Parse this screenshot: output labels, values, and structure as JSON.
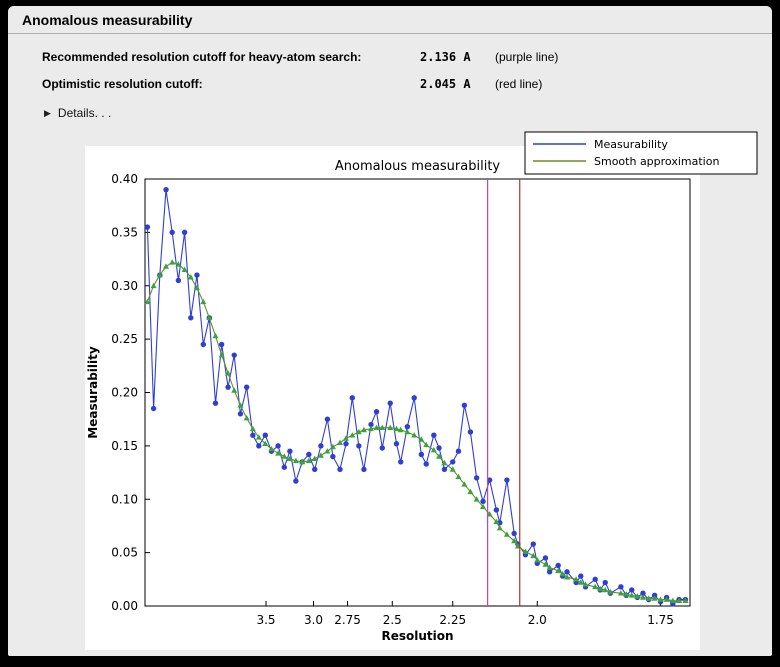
{
  "window": {
    "title": "Anomalous measurability",
    "info": {
      "rows": [
        {
          "label": "Recommended resolution cutoff for heavy-atom search:",
          "value": "2.136 A",
          "note": "(purple line)"
        },
        {
          "label": "Optimistic resolution cutoff:",
          "value": "2.045 A",
          "note": "(red line)"
        }
      ]
    },
    "details_label": "Details. . ."
  },
  "chart_data": {
    "type": "line",
    "title": "Anomalous measurability",
    "xlabel": "Resolution",
    "ylabel": "Measurability",
    "x_axis": {
      "transform": "1/d^2",
      "d_left": 12.4,
      "d_right": 1.703,
      "ticks": [
        3.5,
        3.0,
        2.75,
        2.5,
        2.25,
        2.0,
        1.75
      ],
      "tick_labels": [
        "3.5",
        "3.0",
        "2.75",
        "2.5",
        "2.25",
        "2.0",
        "1.75"
      ]
    },
    "y_axis": {
      "min": 0.0,
      "max": 0.4,
      "ticks": [
        0.0,
        0.05,
        0.1,
        0.15,
        0.2,
        0.25,
        0.3,
        0.35,
        0.4
      ],
      "tick_labels": [
        "0.00",
        "0.05",
        "0.10",
        "0.15",
        "0.20",
        "0.25",
        "0.30",
        "0.35",
        "0.40"
      ]
    },
    "x_resolution": [
      11.18,
      9.19,
      7.98,
      7.15,
      6.54,
      6.06,
      5.67,
      5.35,
      5.08,
      4.84,
      4.64,
      4.46,
      4.3,
      4.15,
      4.02,
      3.9,
      3.79,
      3.69,
      3.6,
      3.51,
      3.43,
      3.35,
      3.28,
      3.22,
      3.16,
      3.1,
      3.04,
      2.99,
      2.94,
      2.89,
      2.85,
      2.8,
      2.76,
      2.72,
      2.68,
      2.65,
      2.61,
      2.58,
      2.55,
      2.51,
      2.48,
      2.46,
      2.43,
      2.4,
      2.37,
      2.35,
      2.32,
      2.3,
      2.28,
      2.25,
      2.23,
      2.21,
      2.19,
      2.17,
      2.15,
      2.13,
      2.11,
      2.1,
      2.08,
      2.06,
      2.05,
      2.03,
      2.01,
      2.0,
      1.98,
      1.97,
      1.95,
      1.94,
      1.93,
      1.91,
      1.9,
      1.89,
      1.87,
      1.86,
      1.85,
      1.84,
      1.82,
      1.81,
      1.8,
      1.79,
      1.78,
      1.77,
      1.76,
      1.75,
      1.74,
      1.73,
      1.72,
      1.71
    ],
    "series": [
      {
        "name": "Measurability",
        "color": "#2f3fd3",
        "marker": "circle",
        "values": [
          0.355,
          0.185,
          0.31,
          0.39,
          0.35,
          0.305,
          0.35,
          0.27,
          0.31,
          0.245,
          0.27,
          0.19,
          0.245,
          0.205,
          0.235,
          0.18,
          0.205,
          0.16,
          0.15,
          0.16,
          0.145,
          0.15,
          0.13,
          0.145,
          0.117,
          0.135,
          0.142,
          0.128,
          0.15,
          0.175,
          0.14,
          0.128,
          0.152,
          0.195,
          0.15,
          0.128,
          0.17,
          0.182,
          0.148,
          0.19,
          0.152,
          0.135,
          0.168,
          0.195,
          0.142,
          0.133,
          0.16,
          0.148,
          0.128,
          0.135,
          0.145,
          0.188,
          0.163,
          0.12,
          0.098,
          0.118,
          0.09,
          0.078,
          0.118,
          0.068,
          0.058,
          0.048,
          0.058,
          0.04,
          0.045,
          0.032,
          0.038,
          0.028,
          0.032,
          0.022,
          0.028,
          0.018,
          0.025,
          0.015,
          0.022,
          0.012,
          0.018,
          0.01,
          0.015,
          0.008,
          0.012,
          0.006,
          0.01,
          0.004,
          0.008,
          0.002,
          0.006,
          0.006
        ]
      },
      {
        "name": "Smooth approximation",
        "color": "#3aa33a",
        "line_color": "#6b8e23",
        "marker": "triangle",
        "values": [
          0.285,
          0.3,
          0.31,
          0.318,
          0.322,
          0.32,
          0.315,
          0.308,
          0.298,
          0.285,
          0.27,
          0.253,
          0.235,
          0.218,
          0.202,
          0.188,
          0.176,
          0.166,
          0.158,
          0.152,
          0.147,
          0.143,
          0.14,
          0.138,
          0.136,
          0.135,
          0.136,
          0.138,
          0.141,
          0.145,
          0.149,
          0.153,
          0.157,
          0.16,
          0.163,
          0.165,
          0.166,
          0.167,
          0.167,
          0.167,
          0.166,
          0.165,
          0.163,
          0.16,
          0.156,
          0.151,
          0.146,
          0.14,
          0.134,
          0.128,
          0.121,
          0.114,
          0.107,
          0.1,
          0.093,
          0.086,
          0.079,
          0.073,
          0.067,
          0.061,
          0.056,
          0.051,
          0.047,
          0.043,
          0.039,
          0.036,
          0.033,
          0.03,
          0.027,
          0.025,
          0.022,
          0.02,
          0.018,
          0.016,
          0.015,
          0.013,
          0.012,
          0.011,
          0.01,
          0.009,
          0.008,
          0.007,
          0.007,
          0.006,
          0.006,
          0.005,
          0.005,
          0.005
        ]
      }
    ],
    "vlines": [
      {
        "x": 2.136,
        "color": "#bb44bb",
        "id": "purple-line",
        "label": "purple line"
      },
      {
        "x": 2.045,
        "color": "#993b35",
        "id": "red-line",
        "label": "red line"
      }
    ],
    "legend": {
      "position": "top-right",
      "entries": [
        "Measurability",
        "Smooth approximation"
      ]
    }
  }
}
